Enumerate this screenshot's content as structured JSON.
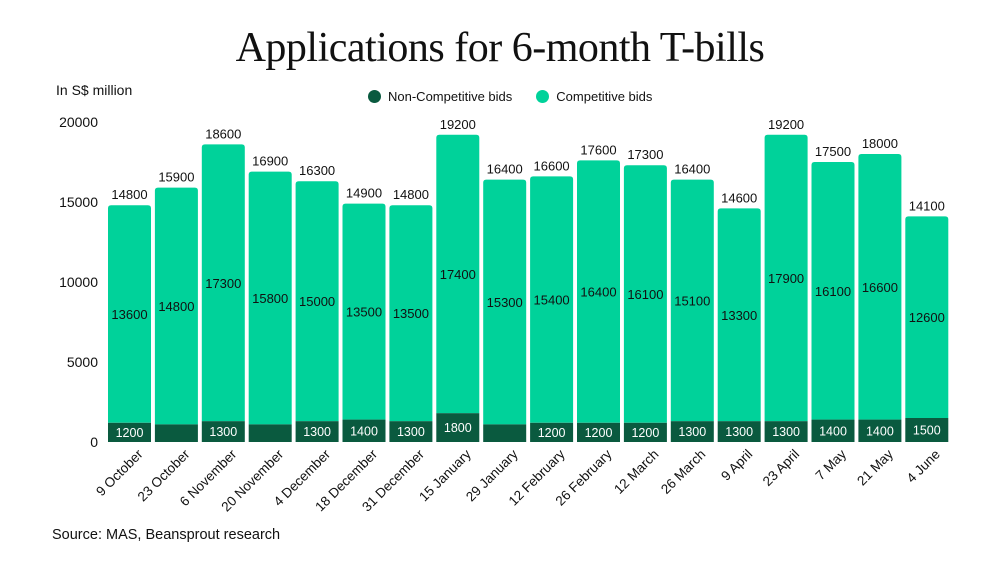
{
  "chart_data": {
    "type": "bar",
    "stacked": true,
    "title": "Applications for 6-month T-bills",
    "ylabel": "In S$ million",
    "ylim": [
      0,
      20000
    ],
    "yticks": [
      "0",
      "5000",
      "10000",
      "15000",
      "20000"
    ],
    "grid": false,
    "legend_position": "top",
    "categories": [
      "9 October",
      "23 October",
      "6 November",
      "20 November",
      "4 December",
      "18 December",
      "31 December",
      "15 January",
      "29 January",
      "12 February",
      "26 February",
      "12 March",
      "26 March",
      "9 April",
      "23 April",
      "7 May",
      "21 May",
      "4 June"
    ],
    "series": [
      {
        "name": "Non-Competitive bids",
        "color": "#0a5a3f",
        "values": [
          1200,
          1100,
          1300,
          1100,
          1300,
          1400,
          1300,
          1800,
          1100,
          1200,
          1200,
          1200,
          1300,
          1300,
          1300,
          1400,
          1400,
          1500
        ],
        "labels": [
          "1200",
          "",
          "1300",
          "",
          "1300",
          "1400",
          "1300",
          "1800",
          "",
          "1200",
          "1200",
          "1200",
          "1300",
          "1300",
          "1300",
          "1400",
          "1400",
          "1500"
        ]
      },
      {
        "name": "Competitive bids",
        "color": "#00d29a",
        "values": [
          13600,
          14800,
          17300,
          15800,
          15000,
          13500,
          13500,
          17400,
          15300,
          15400,
          16400,
          16100,
          15100,
          13300,
          17900,
          16100,
          16600,
          12600
        ],
        "labels": [
          "13600",
          "14800",
          "17300",
          "15800",
          "15000",
          "13500",
          "13500",
          "17400",
          "15300",
          "15400",
          "16400",
          "16100",
          "15100",
          "13300",
          "17900",
          "16100",
          "16600",
          "12600"
        ]
      }
    ],
    "totals": [
      "14800",
      "15900",
      "18600",
      "16900",
      "16300",
      "14900",
      "14800",
      "19200",
      "16400",
      "16600",
      "17600",
      "17300",
      "16400",
      "14600",
      "19200",
      "17500",
      "18000",
      "14100"
    ],
    "source": "Source: MAS, Beansprout research"
  }
}
